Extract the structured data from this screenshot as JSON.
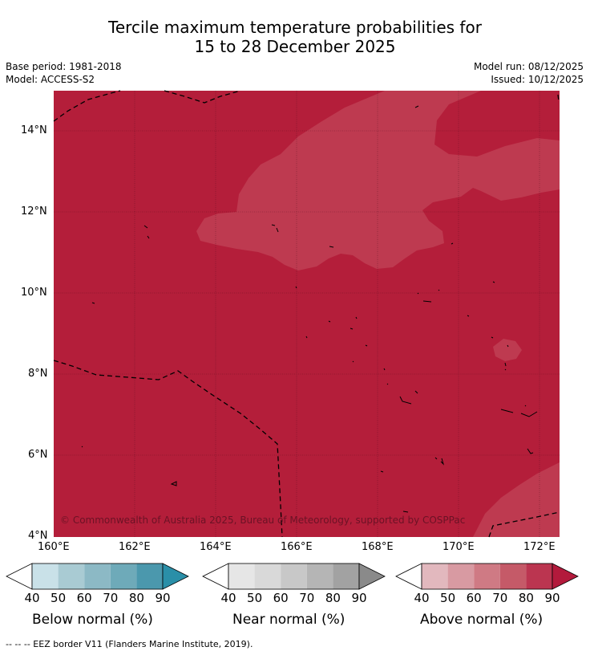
{
  "title": {
    "line1": "Tercile maximum temperature probabilities for",
    "line2": "15 to 28 December 2025"
  },
  "meta": {
    "base_period": "Base period: 1981-2018",
    "model": "Model: ACCESS-S2",
    "model_run": "Model run: 08/12/2025",
    "issued": "Issued: 10/12/2025"
  },
  "map": {
    "lat_labels": [
      "14°N",
      "12°N",
      "10°N",
      "8°N",
      "6°N",
      "4°N"
    ],
    "lon_labels": [
      "160°E",
      "162°E",
      "164°E",
      "166°E",
      "168°E",
      "170°E",
      "172°E"
    ],
    "copyright": "© Commonwealth of Australia 2025, Bureau of Meteorology, supported by COSPPac",
    "colors": {
      "above_80_90": "#b41e3a",
      "above_70_80": "#be3a50",
      "border": "#000000"
    }
  },
  "legends": [
    {
      "name": "Below normal (%)",
      "ticks": [
        "40",
        "50",
        "60",
        "70",
        "80",
        "90"
      ],
      "colors": [
        "#ffffff",
        "#c9e1e8",
        "#a9cbd3",
        "#8cb9c5",
        "#6eaab9",
        "#4b98ad",
        "#2a8fa8"
      ]
    },
    {
      "name": "Near normal (%)",
      "ticks": [
        "40",
        "50",
        "60",
        "70",
        "80",
        "90"
      ],
      "colors": [
        "#ffffff",
        "#e6e6e6",
        "#d9d9d9",
        "#c8c8c8",
        "#b5b5b5",
        "#a2a2a2",
        "#8a8a8a"
      ]
    },
    {
      "name": "Above normal (%)",
      "ticks": [
        "40",
        "50",
        "60",
        "70",
        "80",
        "90"
      ],
      "colors": [
        "#ffffff",
        "#e2b8be",
        "#d89aa2",
        "#cf7a84",
        "#c55a68",
        "#bb3550",
        "#b31a3c"
      ]
    }
  ],
  "footer": "--  --  -- EEZ border V11 (Flanders Marine Institute, 2019)."
}
